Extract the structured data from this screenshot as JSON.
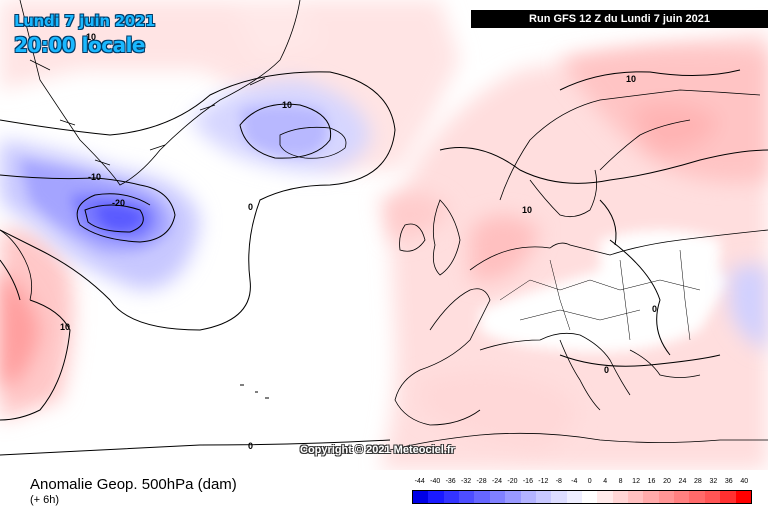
{
  "header": {
    "date": "Lundi 7 juin 2021",
    "time": "20:00 locale",
    "run": "Run GFS 12 Z du Lundi 7 juin 2021"
  },
  "copyright": "Copyright © 2021 Meteociel.fr",
  "footer": {
    "title": "Anomalie Geop. 500hPa (dam)",
    "lead": "(+ 6h)"
  },
  "scale": {
    "labels": [
      "-44",
      "-40",
      "-36",
      "-32",
      "-28",
      "-24",
      "-20",
      "-16",
      "-12",
      "-8",
      "-4",
      "0",
      "4",
      "8",
      "12",
      "16",
      "20",
      "24",
      "28",
      "32",
      "36",
      "40"
    ],
    "colors": [
      "#0000e6",
      "#1a1aff",
      "#3333ff",
      "#4d4dff",
      "#6666ff",
      "#8080ff",
      "#9999ff",
      "#b3b3ff",
      "#c8c8ff",
      "#dcdcff",
      "#eeeeff",
      "#ffffff",
      "#ffeaea",
      "#ffd5d5",
      "#ffc0c0",
      "#ffaaaa",
      "#ff9595",
      "#ff8080",
      "#ff6a6a",
      "#ff5555",
      "#ff3030",
      "#ff0000"
    ]
  },
  "contour_labels": [
    "10",
    "10",
    "-10",
    "-20",
    "0",
    "10",
    "10",
    "10",
    "0",
    "0",
    "0"
  ],
  "colors": {
    "land_line": "#000000",
    "contour": "#000000",
    "blue_anomaly": "#7a7aff",
    "red_anomaly": "#ff8a8a"
  }
}
